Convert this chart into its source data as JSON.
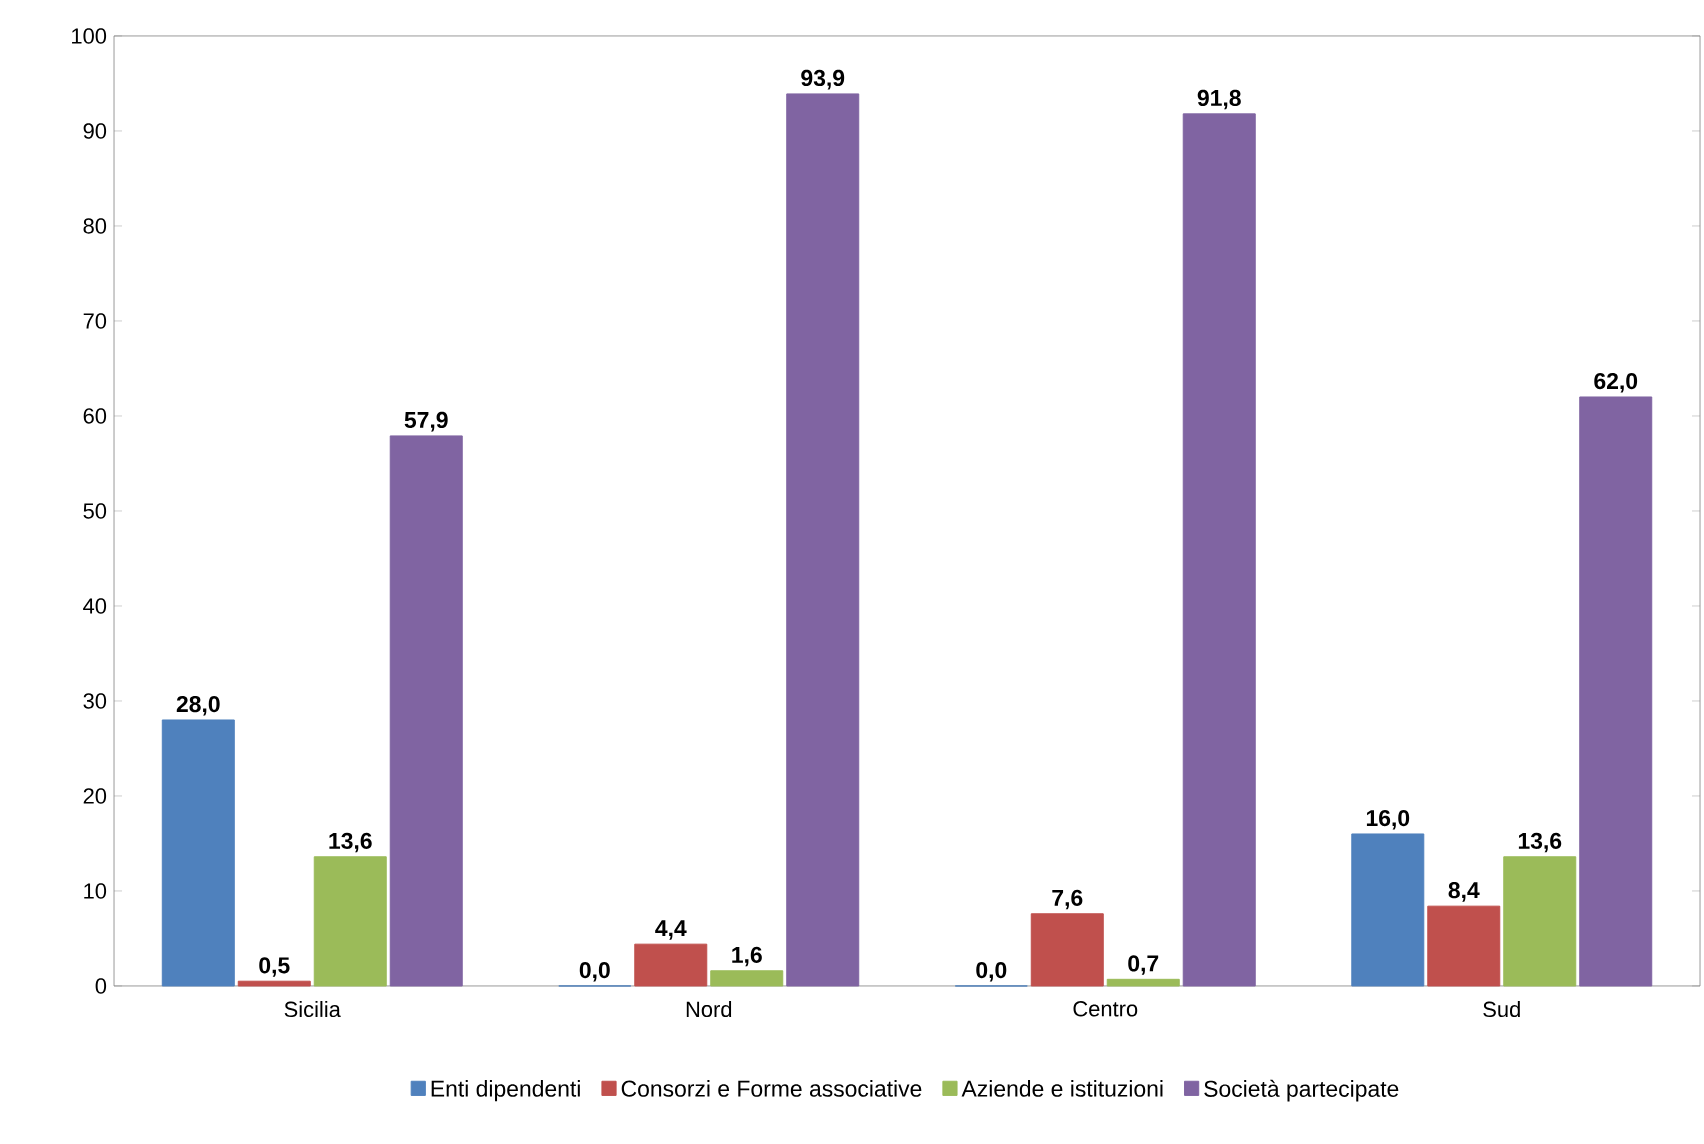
{
  "chart_data": {
    "type": "bar",
    "categories": [
      "Sicilia",
      "Nord",
      "Centro",
      "Sud"
    ],
    "series": [
      {
        "name": "Enti dipendenti",
        "color": "#4f81bd",
        "values": [
          28.0,
          0.0,
          0.0,
          16.0
        ],
        "value_labels": [
          "28,0",
          "0,0",
          "0,0",
          "16,0"
        ]
      },
      {
        "name": "Consorzi e Forme associative",
        "color": "#c0504d",
        "values": [
          0.5,
          4.4,
          7.6,
          8.4
        ],
        "value_labels": [
          "0,5",
          "4,4",
          "7,6",
          "8,4"
        ]
      },
      {
        "name": "Aziende  e istituzioni",
        "color": "#9bbb59",
        "values": [
          13.6,
          1.6,
          0.7,
          13.6
        ],
        "value_labels": [
          "13,6",
          "1,6",
          "0,7",
          "13,6"
        ]
      },
      {
        "name": "Società partecipate",
        "color": "#8064a2",
        "values": [
          57.9,
          93.9,
          91.8,
          62.0
        ],
        "value_labels": [
          "57,9",
          "93,9",
          "91,8",
          "62,0"
        ]
      }
    ],
    "ylim": [
      0,
      100
    ],
    "yticks": [
      0,
      10,
      20,
      30,
      40,
      50,
      60,
      70,
      80,
      90,
      100
    ],
    "legend": "bottom"
  }
}
